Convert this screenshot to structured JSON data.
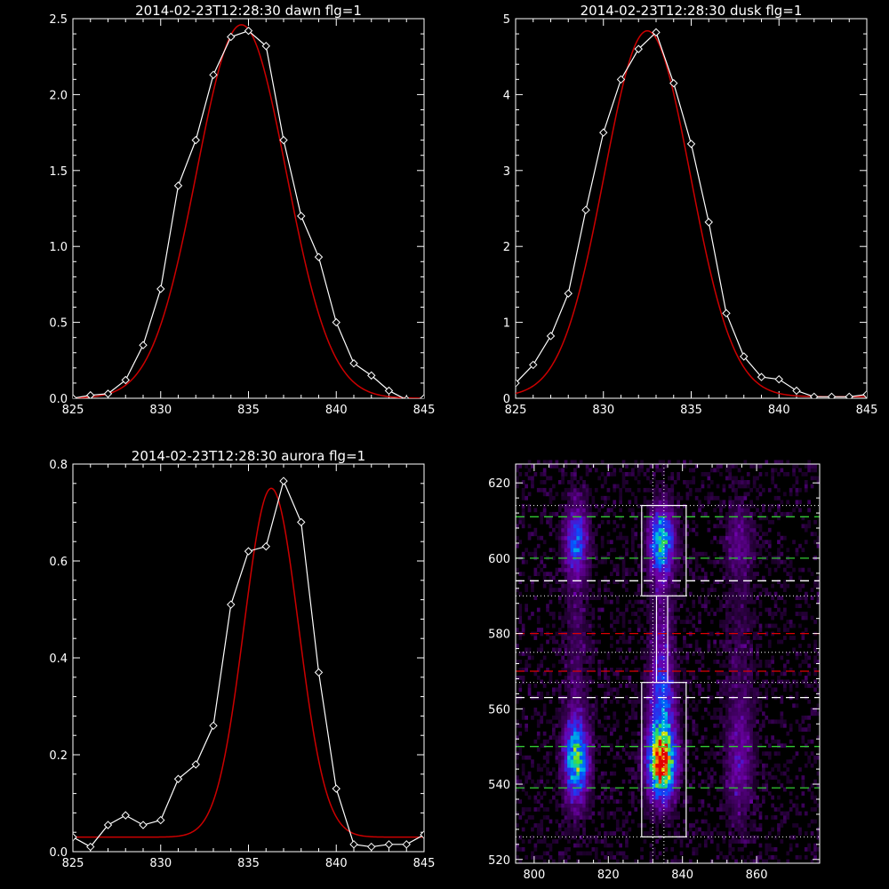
{
  "chart_data": [
    {
      "type": "line",
      "title": "2014-02-23T12:28:30 dawn flg=1",
      "xlim": [
        825,
        845
      ],
      "ylim": [
        0,
        2.5
      ],
      "xticks": [
        "825",
        "830",
        "835",
        "840",
        "845"
      ],
      "yticks": [
        "0.0",
        "0.5",
        "1.0",
        "1.5",
        "2.0",
        "2.5"
      ],
      "series": [
        {
          "color": "#ffffff",
          "marker": "diamond",
          "x": [
            825,
            826,
            827,
            828,
            829,
            830,
            831,
            832,
            833,
            834,
            835,
            836,
            837,
            838,
            839,
            840,
            841,
            842,
            843,
            844,
            845
          ],
          "y": [
            0.0,
            0.02,
            0.03,
            0.12,
            0.35,
            0.72,
            1.4,
            1.7,
            2.13,
            2.38,
            2.42,
            2.32,
            1.7,
            1.2,
            0.93,
            0.5,
            0.23,
            0.15,
            0.05,
            -0.01,
            0.0
          ]
        },
        {
          "color": "#cc0000",
          "fit": "gaussian",
          "amp": 2.46,
          "center": 834.6,
          "sigma": 2.55,
          "base": 0.0
        }
      ]
    },
    {
      "type": "line",
      "title": "2014-02-23T12:28:30 dusk flg=1",
      "xlim": [
        825,
        845
      ],
      "ylim": [
        0,
        5
      ],
      "xticks": [
        "825",
        "830",
        "835",
        "840",
        "845"
      ],
      "yticks": [
        "0",
        "1",
        "2",
        "3",
        "4",
        "5"
      ],
      "series": [
        {
          "color": "#ffffff",
          "marker": "diamond",
          "x": [
            825,
            826,
            827,
            828,
            829,
            830,
            831,
            832,
            833,
            834,
            835,
            836,
            837,
            838,
            839,
            840,
            841,
            842,
            843,
            844,
            845
          ],
          "y": [
            0.2,
            0.44,
            0.82,
            1.38,
            2.48,
            3.5,
            4.2,
            4.6,
            4.82,
            4.15,
            3.35,
            2.32,
            1.12,
            0.55,
            0.28,
            0.25,
            0.1,
            0.02,
            0.02,
            0.02,
            0.05
          ]
        },
        {
          "color": "#cc0000",
          "fit": "gaussian",
          "amp": 4.82,
          "center": 832.5,
          "sigma": 2.45,
          "base": 0.02
        }
      ]
    },
    {
      "type": "line",
      "title": "2014-02-23T12:28:30 aurora flg=1",
      "xlim": [
        825,
        845
      ],
      "ylim": [
        0,
        0.8
      ],
      "xticks": [
        "825",
        "830",
        "835",
        "840",
        "845"
      ],
      "yticks": [
        "0.0",
        "0.2",
        "0.4",
        "0.6",
        "0.8"
      ],
      "series": [
        {
          "color": "#ffffff",
          "marker": "diamond",
          "x": [
            825,
            826,
            827,
            828,
            829,
            830,
            831,
            832,
            833,
            834,
            835,
            836,
            837,
            838,
            839,
            840,
            841,
            842,
            843,
            844,
            845
          ],
          "y": [
            0.03,
            0.01,
            0.055,
            0.075,
            0.055,
            0.065,
            0.15,
            0.18,
            0.26,
            0.51,
            0.62,
            0.63,
            0.765,
            0.68,
            0.37,
            0.13,
            0.015,
            0.01,
            0.015,
            0.015,
            0.035
          ]
        },
        {
          "color": "#cc0000",
          "fit": "gaussian",
          "amp": 0.72,
          "center": 836.3,
          "sigma": 1.55,
          "base": 0.03
        }
      ]
    },
    {
      "type": "heatmap",
      "title": "",
      "xlim": [
        795,
        877
      ],
      "ylim": [
        519,
        625
      ],
      "xticks": [
        "800",
        "820",
        "840",
        "860"
      ],
      "yticks": [
        "520",
        "540",
        "560",
        "580",
        "600",
        "620"
      ],
      "blobs": [
        {
          "x": 811,
          "y": 546,
          "sx": 2.2,
          "sy": 7,
          "amp": 0.62
        },
        {
          "x": 811,
          "y": 604,
          "sx": 2.0,
          "sy": 6,
          "amp": 0.4
        },
        {
          "x": 834,
          "y": 545,
          "sx": 2.5,
          "sy": 6,
          "amp": 1.0
        },
        {
          "x": 834,
          "y": 604,
          "sx": 2.3,
          "sy": 6,
          "amp": 0.55
        },
        {
          "x": 834,
          "y": 575,
          "sx": 2.0,
          "sy": 18,
          "amp": 0.18
        },
        {
          "x": 834,
          "y": 560,
          "sx": 2.5,
          "sy": 8,
          "amp": 0.3
        },
        {
          "x": 811,
          "y": 575,
          "sx": 2.0,
          "sy": 25,
          "amp": 0.1
        },
        {
          "x": 855,
          "y": 545,
          "sx": 2.5,
          "sy": 10,
          "amp": 0.18
        },
        {
          "x": 855,
          "y": 604,
          "sx": 2.5,
          "sy": 6,
          "amp": 0.14
        },
        {
          "x": 855,
          "y": 575,
          "sx": 2.5,
          "sy": 25,
          "amp": 0.07
        }
      ],
      "green_dashed_y": [
        611,
        600,
        550,
        539
      ],
      "white_dashed_y": [
        594,
        563
      ],
      "red_dashed_y": [
        580,
        570
      ],
      "white_dotted_y": [
        614,
        590,
        575,
        567,
        526
      ],
      "white_dotted_x": [
        832,
        835
      ],
      "boxes": [
        {
          "x0": 829,
          "x1": 841,
          "y0": 526,
          "y1": 567
        },
        {
          "x0": 829,
          "x1": 841,
          "y0": 590,
          "y1": 614
        }
      ],
      "connector": {
        "x0": 833,
        "x1": 836,
        "y0": 567,
        "y1": 590
      },
      "colors": {
        "box": "#ffffff",
        "green": "#33cc33",
        "red": "#dd0000",
        "white": "#ffffff"
      }
    }
  ]
}
